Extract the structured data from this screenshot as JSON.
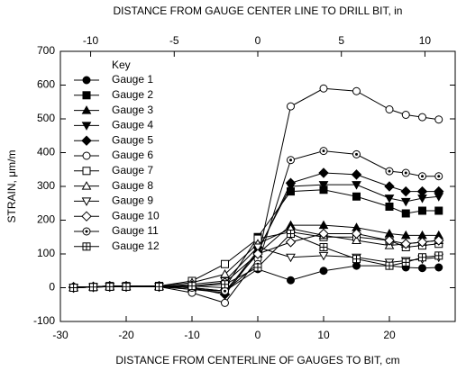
{
  "chart_data": {
    "type": "line",
    "title": "DISTANCE FROM GAUGE CENTER LINE TO DRILL BIT, in",
    "x_label": "DISTANCE FROM CENTERLINE OF GAUGES TO BIT, cm",
    "y_label": "STRAIN, μm/m",
    "legend_title": "Key",
    "legend": "upper left",
    "x": [
      -28,
      -25,
      -22.5,
      -20,
      -15,
      -10,
      -5,
      0,
      5,
      10,
      15,
      20,
      22.5,
      25,
      27.5
    ],
    "xlim": [
      -30,
      30
    ],
    "xticks": [
      -30,
      -20,
      -10,
      0,
      10,
      20
    ],
    "x2lim": [
      -11.81,
      11.81
    ],
    "x2ticks": [
      -10,
      -5,
      0,
      5,
      10
    ],
    "ylim": [
      -100,
      700
    ],
    "yticks": [
      -100,
      0,
      100,
      200,
      300,
      400,
      500,
      600,
      700
    ],
    "series": [
      {
        "name": "Gauge 1",
        "color": "#000000",
        "marker": "circle",
        "filled": true,
        "values": [
          2,
          3,
          5,
          5,
          3,
          -5,
          -10,
          55,
          22,
          50,
          65,
          65,
          60,
          58,
          60
        ]
      },
      {
        "name": "Gauge 2",
        "color": "#000000",
        "marker": "square",
        "filled": true,
        "values": [
          0,
          2,
          3,
          3,
          5,
          5,
          0,
          150,
          285,
          290,
          270,
          240,
          220,
          228,
          228
        ]
      },
      {
        "name": "Gauge 3",
        "color": "#000000",
        "marker": "triangle-up",
        "filled": true,
        "values": [
          2,
          3,
          5,
          5,
          3,
          0,
          -10,
          100,
          185,
          185,
          178,
          160,
          155,
          155,
          155
        ]
      },
      {
        "name": "Gauge 4",
        "color": "#000000",
        "marker": "triangle-down",
        "filled": true,
        "values": [
          0,
          2,
          3,
          3,
          3,
          -5,
          -15,
          110,
          300,
          305,
          305,
          265,
          255,
          265,
          270
        ]
      },
      {
        "name": "Gauge 5",
        "color": "#000000",
        "marker": "diamond",
        "filled": true,
        "values": [
          2,
          3,
          5,
          5,
          5,
          0,
          -20,
          105,
          310,
          340,
          335,
          300,
          285,
          285,
          285
        ]
      },
      {
        "name": "Gauge 6",
        "color": "#000000",
        "marker": "circle",
        "filled": false,
        "values": [
          0,
          2,
          5,
          5,
          3,
          -15,
          -45,
          85,
          537,
          590,
          582,
          528,
          512,
          505,
          498
        ]
      },
      {
        "name": "Gauge 7",
        "color": "#000000",
        "marker": "square",
        "filled": false,
        "values": [
          0,
          2,
          5,
          5,
          5,
          20,
          70,
          145,
          165,
          150,
          150,
          140,
          120,
          125,
          130
        ]
      },
      {
        "name": "Gauge 8",
        "color": "#000000",
        "marker": "triangle-up",
        "filled": false,
        "values": [
          0,
          2,
          3,
          3,
          5,
          15,
          40,
          130,
          175,
          155,
          140,
          125,
          130,
          135,
          140
        ]
      },
      {
        "name": "Gauge 9",
        "color": "#000000",
        "marker": "triangle-down",
        "filled": false,
        "values": [
          0,
          2,
          3,
          3,
          3,
          10,
          20,
          120,
          90,
          95,
          90,
          75,
          80,
          85,
          90
        ]
      },
      {
        "name": "Gauge 10",
        "color": "#000000",
        "marker": "diamond",
        "filled": false,
        "values": [
          0,
          2,
          3,
          3,
          3,
          5,
          15,
          100,
          135,
          160,
          160,
          140,
          130,
          135,
          140
        ]
      },
      {
        "name": "Gauge 11",
        "color": "#000000",
        "marker": "circle-dot",
        "filled": false,
        "values": [
          2,
          3,
          5,
          5,
          5,
          0,
          -10,
          70,
          378,
          405,
          395,
          345,
          340,
          330,
          330
        ]
      },
      {
        "name": "Gauge 12",
        "color": "#000000",
        "marker": "square-cross",
        "filled": false,
        "values": [
          0,
          2,
          3,
          3,
          3,
          5,
          10,
          60,
          160,
          120,
          85,
          65,
          75,
          90,
          95
        ]
      }
    ]
  }
}
